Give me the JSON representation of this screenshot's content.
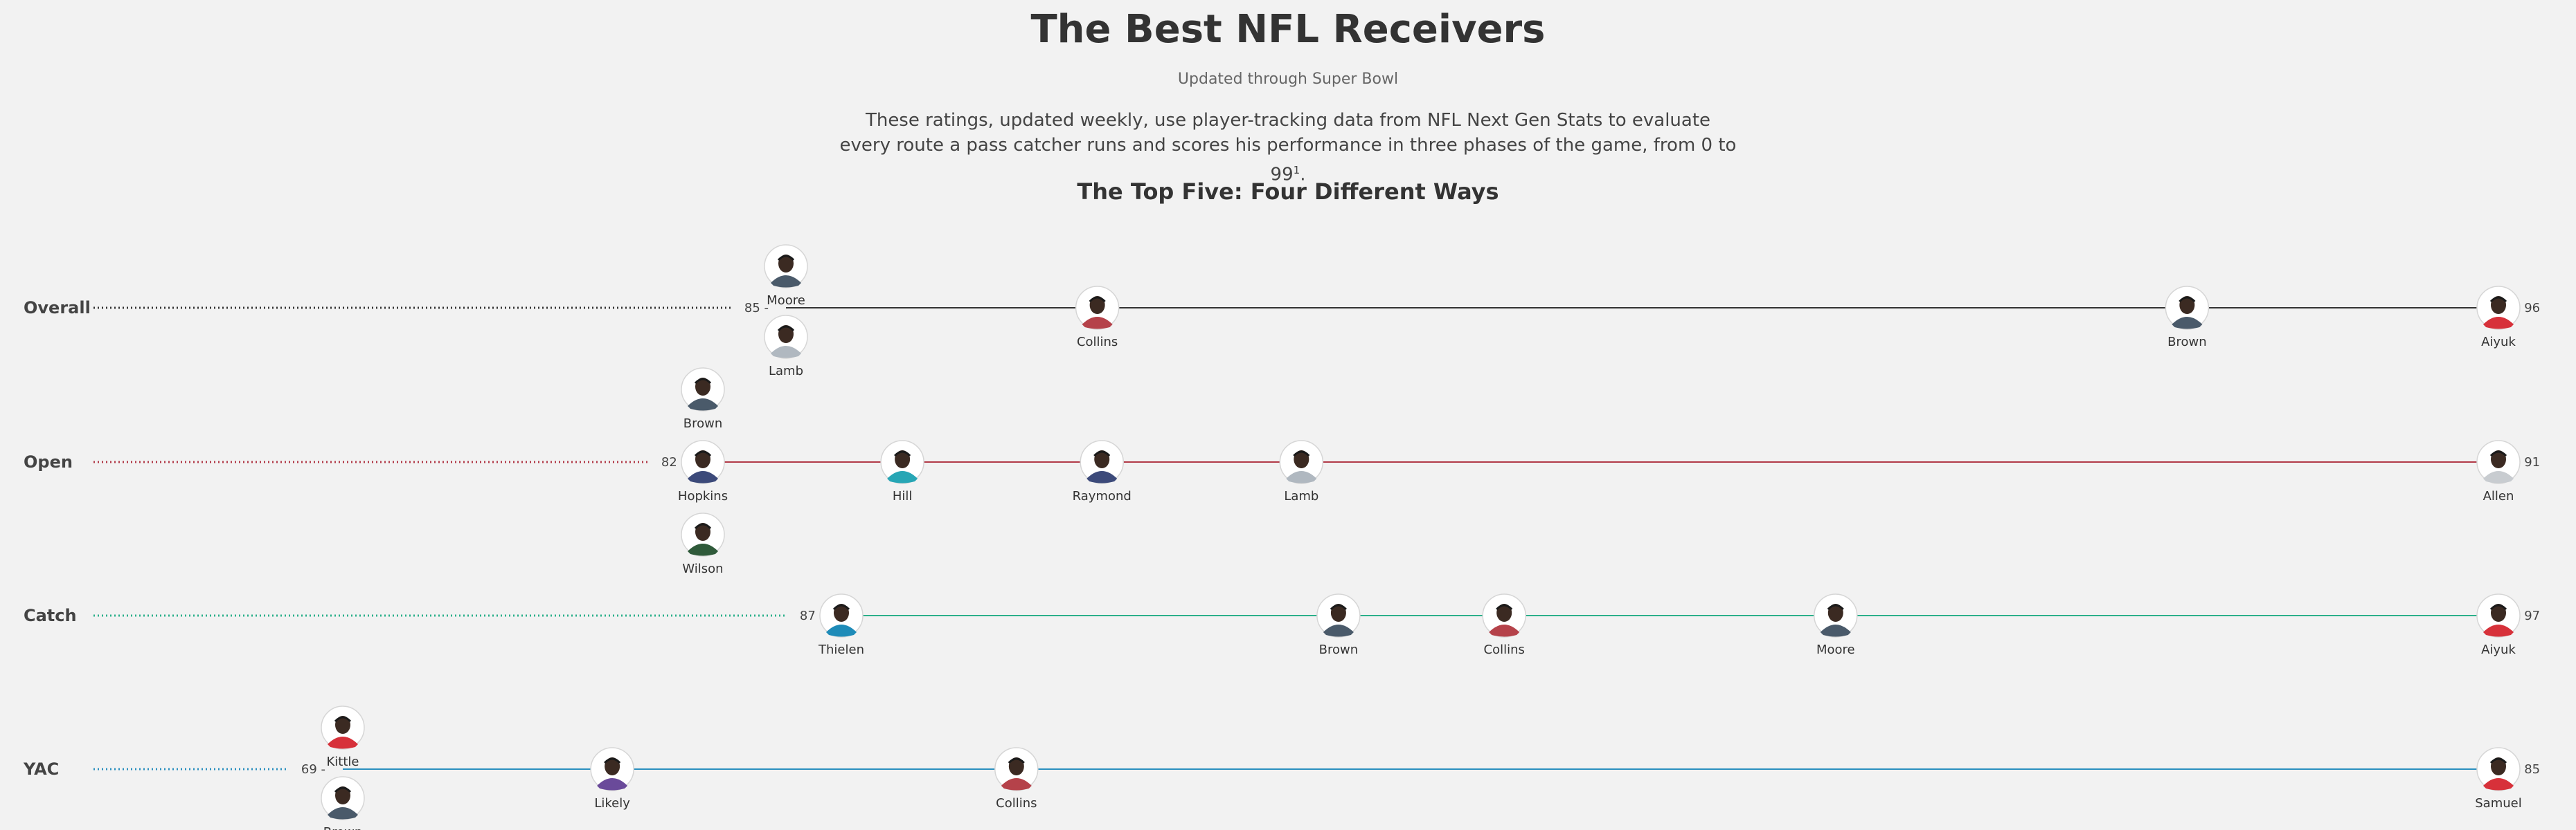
{
  "page": {
    "title": "The Best NFL Receivers",
    "subtitle": "Updated through Super Bowl",
    "description": "These ratings, updated weekly, use player-tracking data from NFL Next Gen Stats to evaluate every route a pass catcher runs and scores his performance in three phases of the game, from 0 to 99",
    "footnote_mark": "1",
    "description_end": ".",
    "section_title": "The Top Five: Four Different Ways"
  },
  "chart_data": [
    {
      "type": "scatter",
      "name": "Overall",
      "color": "#333333",
      "xlim": [
        85,
        96
      ],
      "tick_labels": [
        "85 -",
        "- 96"
      ],
      "points": [
        {
          "player": "Moore",
          "value": 85,
          "jersey": "#4a5a6a"
        },
        {
          "player": "Lamb",
          "value": 85,
          "jersey": "#b0b8c0"
        },
        {
          "player": "Collins",
          "value": 87,
          "jersey": "#b5424a"
        },
        {
          "player": "Brown",
          "value": 94,
          "jersey": "#4a5a6a"
        },
        {
          "player": "Aiyuk",
          "value": 96,
          "jersey": "#d7313a"
        }
      ]
    },
    {
      "type": "scatter",
      "name": "Open",
      "color": "#b23a48",
      "xlim": [
        82,
        91
      ],
      "tick_labels": [
        "82 -",
        "- 91"
      ],
      "points": [
        {
          "player": "Brown",
          "value": 82,
          "jersey": "#4a5a6a"
        },
        {
          "player": "Hopkins",
          "value": 82,
          "jersey": "#3c4a7a"
        },
        {
          "player": "Wilson",
          "value": 82,
          "jersey": "#2f5a3a"
        },
        {
          "player": "Hill",
          "value": 83,
          "jersey": "#27a6b5"
        },
        {
          "player": "Raymond",
          "value": 84,
          "jersey": "#3c4a7a"
        },
        {
          "player": "Lamb",
          "value": 85,
          "jersey": "#b0b8c0"
        },
        {
          "player": "Allen",
          "value": 91,
          "jersey": "#c8ccd0"
        }
      ]
    },
    {
      "type": "scatter",
      "name": "Catch",
      "color": "#2bb08a",
      "xlim": [
        87,
        97
      ],
      "tick_labels": [
        "87 -",
        "- 97"
      ],
      "points": [
        {
          "player": "Thielen",
          "value": 87,
          "jersey": "#1e8bb8"
        },
        {
          "player": "Brown",
          "value": 90,
          "jersey": "#4a5a6a"
        },
        {
          "player": "Collins",
          "value": 91,
          "jersey": "#b5424a"
        },
        {
          "player": "Moore",
          "value": 93,
          "jersey": "#4a5a6a"
        },
        {
          "player": "Aiyuk",
          "value": 97,
          "jersey": "#d7313a"
        }
      ]
    },
    {
      "type": "scatter",
      "name": "YAC",
      "color": "#2a8fbf",
      "xlim": [
        69,
        85
      ],
      "tick_labels": [
        "69 -",
        "- 85"
      ],
      "points": [
        {
          "player": "Kittle",
          "value": 69,
          "jersey": "#d7313a"
        },
        {
          "player": "Brown",
          "value": 69,
          "jersey": "#4a5a6a"
        },
        {
          "player": "Likely",
          "value": 71,
          "jersey": "#6a4a9a"
        },
        {
          "player": "Collins",
          "value": 74,
          "jersey": "#b5424a"
        },
        {
          "player": "Samuel",
          "value": 85,
          "jersey": "#d7313a"
        }
      ]
    }
  ]
}
